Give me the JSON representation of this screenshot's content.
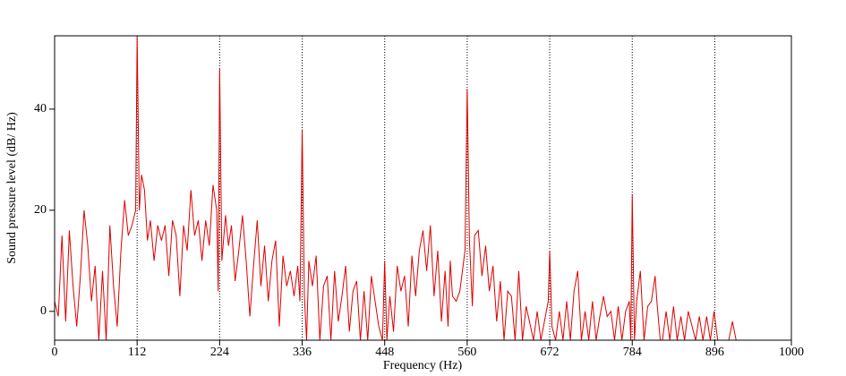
{
  "chart_data": {
    "type": "line",
    "xlabel": "Frequency (Hz)",
    "ylabel": "Sound pressure level (dB/ Hz)",
    "xlim": [
      0,
      1000
    ],
    "ylim": [
      -5.7,
      54.5
    ],
    "xticks": [
      0,
      112,
      224,
      336,
      448,
      560,
      672,
      784,
      896,
      1000
    ],
    "yticks": [
      0,
      20,
      40
    ],
    "grid": true,
    "color": "#dd0000",
    "x": [
      0,
      5,
      10,
      15,
      20,
      25,
      30,
      35,
      40,
      45,
      50,
      55,
      60,
      65,
      70,
      75,
      80,
      85,
      90,
      95,
      100,
      105,
      110,
      112,
      115,
      118,
      122,
      126,
      130,
      135,
      140,
      145,
      150,
      155,
      160,
      165,
      170,
      175,
      180,
      185,
      190,
      195,
      200,
      205,
      210,
      215,
      220,
      222,
      224,
      227,
      232,
      236,
      240,
      245,
      250,
      255,
      260,
      265,
      270,
      275,
      280,
      285,
      290,
      295,
      300,
      305,
      310,
      315,
      320,
      325,
      330,
      333,
      336,
      339,
      342,
      345,
      350,
      355,
      360,
      365,
      370,
      375,
      380,
      385,
      390,
      395,
      400,
      405,
      410,
      415,
      420,
      425,
      430,
      435,
      440,
      445,
      448,
      451,
      455,
      460,
      465,
      470,
      475,
      480,
      485,
      490,
      495,
      500,
      505,
      510,
      515,
      520,
      525,
      530,
      534,
      537,
      540,
      545,
      550,
      557,
      560,
      563,
      567,
      570,
      575,
      580,
      585,
      590,
      595,
      600,
      605,
      610,
      615,
      620,
      625,
      630,
      635,
      640,
      650,
      655,
      660,
      670,
      672,
      675,
      680,
      685,
      690,
      695,
      700,
      705,
      710,
      715,
      720,
      725,
      730,
      735,
      740,
      745,
      750,
      755,
      760,
      765,
      770,
      775,
      780,
      782,
      784,
      787,
      790,
      795,
      800,
      805,
      810,
      815,
      818,
      822,
      825,
      830,
      835,
      840,
      845,
      850,
      855,
      860,
      870,
      875,
      880,
      885,
      890,
      895,
      900,
      915,
      920,
      925,
      1000
    ],
    "values": [
      2,
      -1,
      15,
      -2,
      16,
      5,
      -3,
      7,
      20,
      13,
      2,
      9,
      -5.7,
      8,
      -5.7,
      17,
      5,
      -3,
      12,
      22,
      15,
      17,
      20,
      54.5,
      20,
      27,
      24,
      14,
      18,
      10,
      17,
      14,
      17,
      7,
      18,
      15,
      3,
      17,
      12,
      24,
      15,
      18,
      10,
      18,
      13,
      25,
      20,
      4,
      48,
      10,
      19,
      13,
      17,
      6,
      12,
      19,
      10,
      -1,
      9,
      18,
      5,
      13,
      2,
      10,
      14,
      -3,
      11,
      5,
      8,
      3,
      9,
      2,
      36,
      3,
      -5.7,
      10,
      5,
      11,
      -5.7,
      5,
      7,
      -5.7,
      8,
      -2,
      3,
      9,
      -4,
      4,
      6,
      -5.7,
      4,
      -5.7,
      7,
      2,
      -3,
      -5.7,
      10,
      -5.7,
      3,
      -4,
      9,
      4,
      7,
      -3,
      11,
      3,
      12,
      16,
      8,
      17,
      3,
      12,
      -2,
      8,
      -3,
      10,
      3,
      2,
      4,
      12,
      44,
      14,
      1,
      15,
      16,
      7,
      13,
      4,
      9,
      -2,
      6,
      -5.7,
      4,
      3,
      -5.7,
      8,
      -5.7,
      1,
      -5.7,
      0,
      -5.7,
      2,
      12,
      -3,
      -5.7,
      0,
      -5.7,
      2,
      -5.7,
      4,
      8,
      -5.7,
      0,
      -5.7,
      2,
      -5.7,
      -1,
      3,
      -1,
      0,
      -5.7,
      1,
      -5.7,
      0,
      2,
      -5.7,
      23,
      -5.7,
      2,
      8,
      -5.7,
      1,
      2,
      7,
      1,
      -5.7,
      -5.7,
      0,
      -5.7,
      1,
      -5.7,
      -1,
      -5.7,
      0,
      -5.7,
      -1,
      -5.7,
      -1,
      -5.7,
      0,
      -5.7,
      -5.7,
      -2,
      -5.7,
      -5.7
    ]
  }
}
